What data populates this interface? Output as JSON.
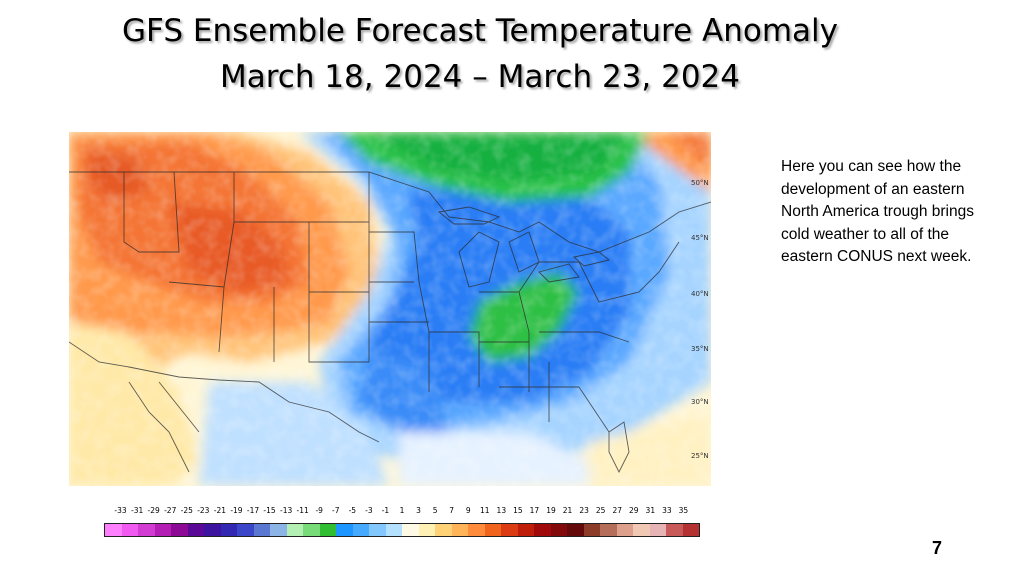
{
  "slide": {
    "title_line1": "GFS Ensemble Forecast Temperature Anomaly",
    "title_line2": "March 18, 2024 – March 23, 2024",
    "note": "Here you can see how the development of an eastern North America trough brings cold weather to all of the eastern CONUS next week.",
    "page_number": "7"
  },
  "map": {
    "latitude_labels": [
      "50°N",
      "45°N",
      "40°N",
      "35°N",
      "30°N",
      "25°N"
    ]
  },
  "colorbar": {
    "labels": [
      "-33",
      "-31",
      "-29",
      "-27",
      "-25",
      "-23",
      "-21",
      "-19",
      "-17",
      "-15",
      "-13",
      "-11",
      "-9",
      "-7",
      "-5",
      "-3",
      "-1",
      "1",
      "3",
      "5",
      "7",
      "9",
      "11",
      "13",
      "15",
      "17",
      "19",
      "21",
      "23",
      "25",
      "27",
      "29",
      "31",
      "33",
      "35"
    ],
    "colors": [
      "#ff80ff",
      "#f05af0",
      "#d23cd2",
      "#b41eb4",
      "#8c0a96",
      "#5a0a96",
      "#3c14a0",
      "#3228b4",
      "#3c46c8",
      "#5a78d2",
      "#8cb4e6",
      "#b4f0b4",
      "#78dc78",
      "#32be32",
      "#1e96ff",
      "#46aaff",
      "#82c8ff",
      "#b4e1ff",
      "#fffae6",
      "#fff0b4",
      "#ffd278",
      "#ffb45a",
      "#ff8c3c",
      "#f0641e",
      "#dc3c14",
      "#be1e0a",
      "#a00a0a",
      "#820a0a",
      "#640a0a",
      "#8c3c28",
      "#b46e5a",
      "#dca08c",
      "#f0c8b4",
      "#e6b4b4",
      "#c85a5a",
      "#b43232"
    ]
  }
}
